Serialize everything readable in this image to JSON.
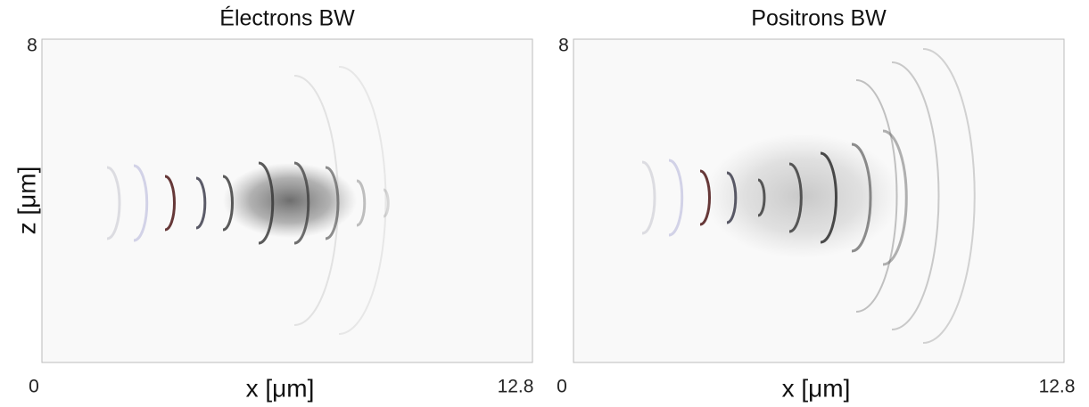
{
  "panels": [
    {
      "title": "Électrons BW",
      "x_min": 0,
      "x_max": 12.8,
      "z_max": 8,
      "x_label": "x [μm]",
      "z_label": "z [μm]"
    },
    {
      "title": "Positrons BW",
      "x_min": 0,
      "x_max": 12.8,
      "z_max": 8,
      "x_label": "x [μm]"
    }
  ]
}
